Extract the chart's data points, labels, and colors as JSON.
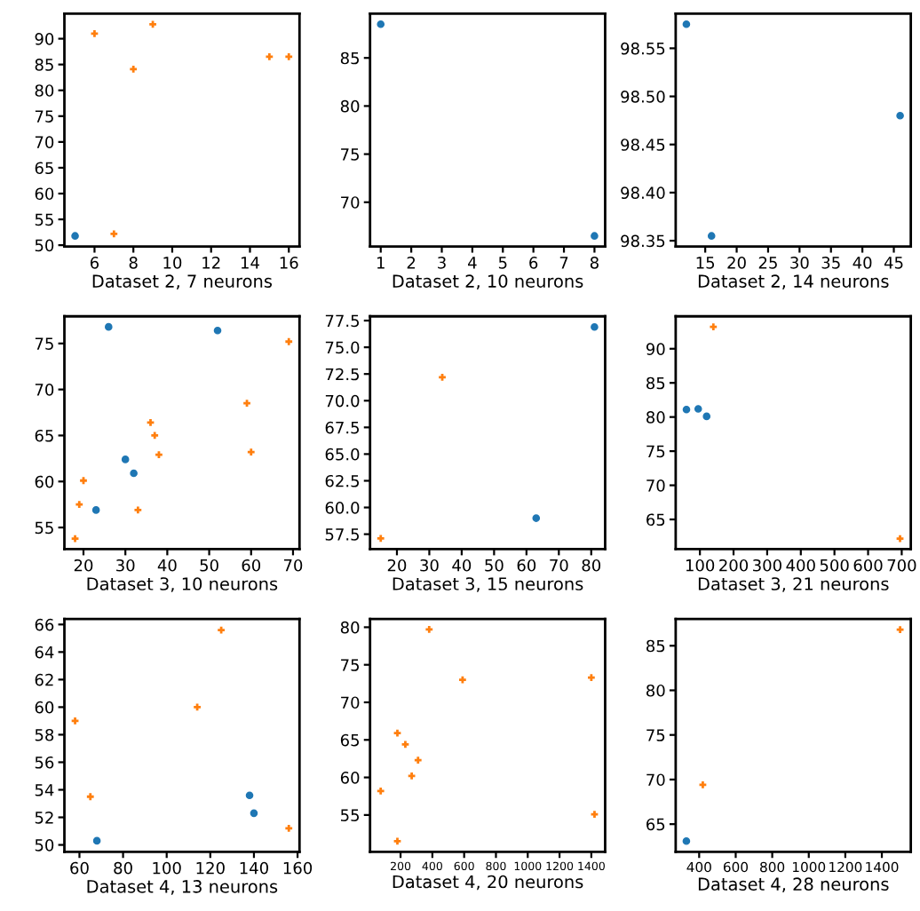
{
  "chart_data": [
    {
      "type": "scatter",
      "xlabel": "Dataset 2, 7 neurons",
      "xlim": [
        4.45,
        16.55
      ],
      "ylim": [
        49.75,
        94.85
      ],
      "xticks": [
        6,
        8,
        10,
        12,
        14,
        16
      ],
      "yticks": [
        50,
        55,
        60,
        65,
        70,
        75,
        80,
        85,
        90
      ],
      "series": [
        {
          "color": "#1f77b4",
          "marker": "circle",
          "x": [
            5
          ],
          "values": [
            51.8
          ]
        },
        {
          "color": "#ff7f0e",
          "marker": "cross",
          "x": [
            6,
            7,
            8,
            9,
            15,
            16
          ],
          "values": [
            91,
            52.2,
            84.1,
            92.8,
            86.5,
            86.5
          ]
        }
      ]
    },
    {
      "type": "scatter",
      "xlabel": "Dataset 2, 10 neurons",
      "xlim": [
        0.65,
        8.35
      ],
      "ylim": [
        65.4,
        89.6
      ],
      "xticks": [
        1,
        2,
        3,
        4,
        5,
        6,
        7,
        8
      ],
      "yticks": [
        70,
        75,
        80,
        85
      ],
      "series": [
        {
          "color": "#1f77b4",
          "marker": "circle",
          "x": [
            1,
            8
          ],
          "values": [
            88.5,
            66.5
          ]
        }
      ]
    },
    {
      "type": "scatter",
      "xlabel": "Dataset 2, 14 neurons",
      "xlim": [
        10.3,
        47.7
      ],
      "ylim": [
        98.344,
        98.586
      ],
      "xticks": [
        15,
        20,
        25,
        30,
        35,
        40,
        45
      ],
      "yticks": [
        {
          "value": 98.35,
          "label": "98.35"
        },
        {
          "value": 98.4,
          "label": "98.40"
        },
        {
          "value": 98.45,
          "label": "98.45"
        },
        {
          "value": 98.5,
          "label": "98.50"
        },
        {
          "value": 98.55,
          "label": "98.55"
        }
      ],
      "series": [
        {
          "color": "#1f77b4",
          "marker": "circle",
          "x": [
            12,
            16,
            46
          ],
          "values": [
            98.575,
            98.355,
            98.48
          ]
        }
      ]
    },
    {
      "type": "scatter",
      "xlabel": "Dataset 3, 10 neurons",
      "xlim": [
        15.45,
        71.55
      ],
      "ylim": [
        52.65,
        77.95
      ],
      "xticks": [
        20,
        30,
        40,
        50,
        60,
        70
      ],
      "yticks": [
        55,
        60,
        65,
        70,
        75
      ],
      "series": [
        {
          "color": "#1f77b4",
          "marker": "circle",
          "x": [
            23,
            26,
            30,
            32,
            52
          ],
          "values": [
            56.9,
            76.8,
            62.4,
            60.9,
            76.4
          ]
        },
        {
          "color": "#ff7f0e",
          "marker": "cross",
          "x": [
            18,
            19,
            20,
            33,
            36,
            37,
            38,
            59,
            60,
            69
          ],
          "values": [
            53.8,
            57.5,
            60.1,
            56.9,
            66.4,
            65,
            62.9,
            68.5,
            63.2,
            75.2
          ]
        }
      ]
    },
    {
      "type": "scatter",
      "xlabel": "Dataset 3, 15 neurons",
      "xlim": [
        11.7,
        84.3
      ],
      "ylim": [
        56.1,
        77.9
      ],
      "xticks": [
        20,
        30,
        40,
        50,
        60,
        70,
        80
      ],
      "yticks": [
        {
          "value": 57.5,
          "label": "57.5"
        },
        {
          "value": 60,
          "label": "60.0"
        },
        {
          "value": 62.5,
          "label": "62.5"
        },
        {
          "value": 65,
          "label": "65.0"
        },
        {
          "value": 67.5,
          "label": "67.5"
        },
        {
          "value": 70,
          "label": "70.0"
        },
        {
          "value": 72.5,
          "label": "72.5"
        },
        {
          "value": 75,
          "label": "75.0"
        },
        {
          "value": 77.5,
          "label": "77.5"
        }
      ],
      "series": [
        {
          "color": "#1f77b4",
          "marker": "circle",
          "x": [
            63,
            81
          ],
          "values": [
            59,
            76.9
          ]
        },
        {
          "color": "#ff7f0e",
          "marker": "cross",
          "x": [
            15,
            34
          ],
          "values": [
            57.1,
            72.2
          ]
        }
      ]
    },
    {
      "type": "scatter",
      "xlabel": "Dataset 3, 21 neurons",
      "xlim": [
        28,
        727
      ],
      "ylim": [
        60.65,
        94.75
      ],
      "xticks": [
        100,
        200,
        300,
        400,
        500,
        600,
        700
      ],
      "yticks": [
        65,
        70,
        75,
        80,
        85,
        90
      ],
      "series": [
        {
          "color": "#1f77b4",
          "marker": "circle",
          "x": [
            60,
            95,
            120
          ],
          "values": [
            81.1,
            81.2,
            80.1
          ]
        },
        {
          "color": "#ff7f0e",
          "marker": "cross",
          "x": [
            140,
            695
          ],
          "values": [
            93.2,
            62.2
          ]
        }
      ]
    },
    {
      "type": "scatter",
      "xlabel": "Dataset 4, 13 neurons",
      "xlim": [
        53.1,
        160.9
      ],
      "ylim": [
        49.5,
        66.4
      ],
      "xticks": [
        60,
        80,
        100,
        120,
        140,
        160
      ],
      "yticks": [
        50,
        52,
        54,
        56,
        58,
        60,
        62,
        64,
        66
      ],
      "series": [
        {
          "color": "#1f77b4",
          "marker": "circle",
          "x": [
            68,
            138,
            140
          ],
          "values": [
            50.3,
            53.6,
            52.3
          ]
        },
        {
          "color": "#ff7f0e",
          "marker": "cross",
          "x": [
            58,
            65,
            114,
            125,
            156
          ],
          "values": [
            59,
            53.5,
            60,
            65.6,
            51.2
          ]
        }
      ]
    },
    {
      "type": "scatter",
      "xlabel": "Dataset 4, 20 neurons",
      "xlim": [
        8,
        1487
      ],
      "ylim": [
        50.1,
        81.1
      ],
      "xticks": [
        200,
        400,
        600,
        800,
        1000,
        1200,
        1400
      ],
      "yticks": [
        55,
        60,
        65,
        70,
        75,
        80
      ],
      "series": [
        {
          "color": "#ff7f0e",
          "marker": "cross",
          "x": [
            75,
            180,
            180,
            230,
            270,
            310,
            380,
            590,
            1400,
            1420
          ],
          "values": [
            58.2,
            51.5,
            65.9,
            64.4,
            60.2,
            62.3,
            79.7,
            73,
            73.3,
            55.1
          ]
        }
      ]
    },
    {
      "type": "scatter",
      "xlabel": "Dataset 4, 28 neurons",
      "xlim": [
        271.5,
        1558.5
      ],
      "ylim": [
        61.9,
        88
      ],
      "xticks": [
        400,
        600,
        800,
        1000,
        1200,
        1400
      ],
      "yticks": [
        65,
        70,
        75,
        80,
        85
      ],
      "series": [
        {
          "color": "#1f77b4",
          "marker": "circle",
          "x": [
            330
          ],
          "values": [
            63.1
          ]
        },
        {
          "color": "#ff7f0e",
          "marker": "cross",
          "x": [
            420,
            1500
          ],
          "values": [
            69.4,
            86.8
          ]
        }
      ]
    }
  ]
}
